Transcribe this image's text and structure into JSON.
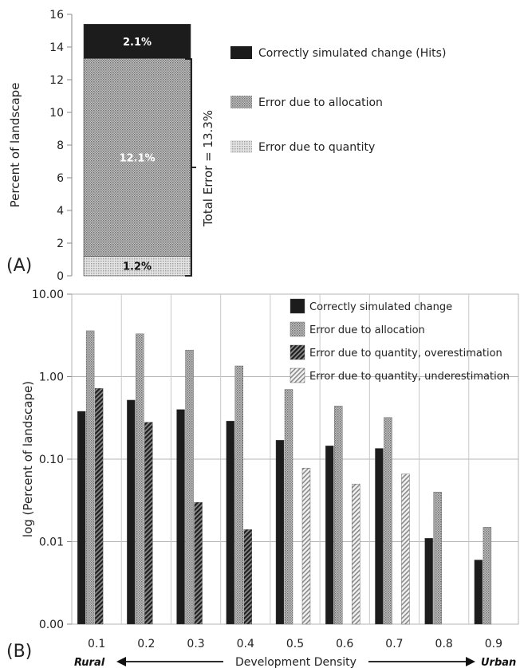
{
  "charts": {
    "a": {
      "panel_label": "(A)",
      "ylabel": "Percent of landscape",
      "y_ticks": [
        "0",
        "2",
        "4",
        "6",
        "8",
        "10",
        "12",
        "14",
        "16"
      ],
      "bracket_label": "Total Error = 13.3%",
      "legend": [
        {
          "label": "Correctly simulated change (Hits)",
          "pattern": "solid-dark"
        },
        {
          "label": "Error due to allocation",
          "pattern": "dot-dense"
        },
        {
          "label": "Error due to quantity",
          "pattern": "dot-light"
        }
      ],
      "segment_labels": [
        "1.2%",
        "12.1%",
        "2.1%"
      ]
    },
    "b": {
      "panel_label": "(B)",
      "ylabel": "log (Percent of landscape)",
      "xlabel": "Development Density",
      "x_left_label": "Rural",
      "x_right_label": "Urban",
      "y_ticks": [
        "0.00",
        "0.01",
        "0.10",
        "1.00",
        "10.00"
      ],
      "x_ticks": [
        "0.1",
        "0.2",
        "0.3",
        "0.4",
        "0.5",
        "0.6",
        "0.7",
        "0.8",
        "0.9"
      ],
      "legend": [
        {
          "label": "Correctly simulated change",
          "pattern": "solid-dark"
        },
        {
          "label": "Error due to allocation",
          "pattern": "dot-dense"
        },
        {
          "label": "Error due to quantity, overestimation",
          "pattern": "diag-dense"
        },
        {
          "label": "Error due to quantity, underestimation",
          "pattern": "diag-light"
        }
      ]
    }
  },
  "chart_data": [
    {
      "type": "bar",
      "stacked": true,
      "ylabel": "Percent of landscape",
      "ylim": [
        0,
        16
      ],
      "categories": [
        ""
      ],
      "series": [
        {
          "name": "Error due to quantity",
          "values": [
            1.2
          ],
          "label": "1.2%"
        },
        {
          "name": "Error due to allocation",
          "values": [
            12.1
          ],
          "label": "12.1%"
        },
        {
          "name": "Correctly simulated change (Hits)",
          "values": [
            2.1
          ],
          "label": "2.1%"
        }
      ],
      "annotation": "Total Error = 13.3%"
    },
    {
      "type": "bar",
      "log_scale": true,
      "ylabel": "log (Percent of landscape)",
      "xlabel": "Development Density",
      "ylim": [
        0.001,
        10
      ],
      "categories": [
        "0.1",
        "0.2",
        "0.3",
        "0.4",
        "0.5",
        "0.6",
        "0.7",
        "0.8",
        "0.9"
      ],
      "series": [
        {
          "name": "Correctly simulated change",
          "values": [
            0.38,
            0.52,
            0.4,
            0.29,
            0.17,
            0.145,
            0.135,
            0.011,
            0.006
          ]
        },
        {
          "name": "Error due to allocation",
          "values": [
            3.6,
            3.3,
            2.1,
            1.35,
            0.7,
            0.44,
            0.32,
            0.04,
            0.015
          ]
        },
        {
          "name": "Error due to quantity, overestimation",
          "values": [
            0.72,
            0.28,
            0.03,
            0.014,
            null,
            null,
            null,
            null,
            null
          ]
        },
        {
          "name": "Error due to quantity, underestimation",
          "values": [
            null,
            null,
            null,
            null,
            0.078,
            0.05,
            0.066,
            null,
            null
          ]
        }
      ]
    }
  ]
}
